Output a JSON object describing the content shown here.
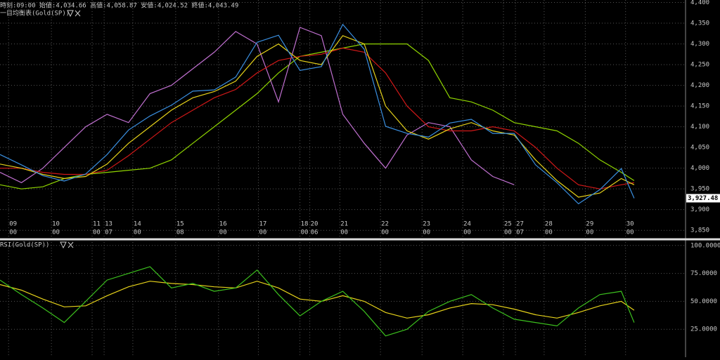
{
  "chart_data": [
    {
      "type": "line",
      "header": "時刻:09:00 始値:4,034.66 高値:4,058.87 安値:4,024.52 終値:4,043.49",
      "title": "一目均衡表(Gold(SP))",
      "x": [
        0,
        5,
        10,
        15,
        20,
        25,
        30,
        35,
        40,
        45,
        50,
        55,
        60,
        65,
        70,
        75,
        80,
        85,
        90,
        95,
        100,
        105,
        110,
        115,
        120,
        125,
        130,
        135,
        140,
        145,
        148
      ],
      "xlim": [
        0,
        160
      ],
      "xticks": [
        {
          "value": 2,
          "label": "09"
        },
        {
          "value": 12,
          "label": "10"
        },
        {
          "value": 21.5,
          "label": "11"
        },
        {
          "value": 24.3,
          "label": "13"
        },
        {
          "value": 31,
          "label": "14"
        },
        {
          "value": 41,
          "label": "15"
        },
        {
          "value": 51,
          "label": "16"
        },
        {
          "value": 60.3,
          "label": "17"
        },
        {
          "value": 70,
          "label": "18"
        },
        {
          "value": 72.3,
          "label": "20"
        },
        {
          "value": 79.3,
          "label": "21"
        },
        {
          "value": 88.8,
          "label": "22"
        },
        {
          "value": 98.5,
          "label": "23"
        },
        {
          "value": 108,
          "label": "24"
        },
        {
          "value": 117.5,
          "label": "25"
        },
        {
          "value": 120.3,
          "label": "27"
        },
        {
          "value": 127,
          "label": "28"
        },
        {
          "value": 136.6,
          "label": "29"
        },
        {
          "value": 146,
          "label": "30"
        }
      ],
      "xtick_sublabels": [
        "00",
        "00",
        "00",
        "07",
        "00",
        "08",
        "00",
        "00",
        "00",
        "06",
        "00",
        "00",
        "00",
        "00",
        "00",
        "07",
        "00",
        "00",
        "00"
      ],
      "ylim": [
        3830,
        4406
      ],
      "yticks": [
        {
          "value": 3850,
          "label": "3,850"
        },
        {
          "value": 3900,
          "label": "3,900"
        },
        {
          "value": 3950,
          "label": "3,950"
        },
        {
          "value": 4000,
          "label": "4,000"
        },
        {
          "value": 4050,
          "label": "4,050"
        },
        {
          "value": 4100,
          "label": "4,100"
        },
        {
          "value": 4150,
          "label": "4,150"
        },
        {
          "value": 4200,
          "label": "4,200"
        },
        {
          "value": 4250,
          "label": "4,250"
        },
        {
          "value": 4300,
          "label": "4,300"
        },
        {
          "value": 4350,
          "label": "4,350"
        },
        {
          "value": 4400,
          "label": "4,400"
        }
      ],
      "grid": true,
      "last_price": {
        "value": 3927.48,
        "label": "3,927.48"
      },
      "series": [
        {
          "color": "#8fd400",
          "values": [
            3960,
            3950,
            3955,
            3975,
            3985,
            3990,
            3995,
            4000,
            4020,
            4060,
            4100,
            4140,
            4180,
            4230,
            4270,
            4280,
            4290,
            4300,
            4300,
            4300,
            4260,
            4170,
            4160,
            4140,
            4110,
            4100,
            4090,
            4060,
            4020,
            3990,
            3970
          ]
        },
        {
          "color": "#c070d0",
          "values": [
            3990,
            3965,
            4000,
            4050,
            4100,
            4130,
            4110,
            4180,
            4200,
            4240,
            4280,
            4330,
            4300,
            4160,
            4340,
            4320,
            4130,
            4060,
            4000,
            4080,
            4110,
            4100,
            4020,
            3980,
            3960,
            null,
            null,
            null,
            null,
            null,
            null
          ]
        },
        {
          "color": "#d01818",
          "values": [
            4000,
            4000,
            3990,
            3985,
            3985,
            3995,
            4030,
            4070,
            4110,
            4140,
            4170,
            4190,
            4230,
            4260,
            4270,
            4275,
            4290,
            4280,
            4230,
            4150,
            4100,
            4090,
            4090,
            4100,
            4090,
            4050,
            4000,
            3960,
            3950,
            3960,
            3965
          ]
        },
        {
          "color": "#e6d21a",
          "values": [
            4010,
            4000,
            3985,
            3975,
            3980,
            4010,
            4060,
            4100,
            4140,
            4170,
            4185,
            4210,
            4270,
            4300,
            4260,
            4250,
            4320,
            4300,
            4150,
            4090,
            4070,
            4095,
            4110,
            4090,
            4080,
            4020,
            3970,
            3930,
            3940,
            3975,
            3960
          ]
        },
        {
          "color": "#3a8fe0",
          "values": [
            4033,
            4008,
            3982,
            3969,
            3986,
            4033,
            4092,
            4126,
            4152,
            4186,
            4189,
            4220,
            4304,
            4321,
            4236,
            4245,
            4347,
            4287,
            4101,
            4084,
            4075,
            4109,
            4118,
            4084,
            4084,
            4008,
            3965,
            3914,
            3948,
            3999,
            3927.48
          ]
        }
      ]
    },
    {
      "type": "line",
      "title": "RSI(Gold(SP))",
      "x": [
        0,
        5,
        10,
        15,
        20,
        25,
        30,
        35,
        40,
        45,
        50,
        55,
        60,
        65,
        70,
        75,
        80,
        85,
        90,
        95,
        100,
        105,
        110,
        115,
        120,
        125,
        130,
        135,
        140,
        145,
        148
      ],
      "xlim": [
        0,
        160
      ],
      "ylim": [
        0,
        103
      ],
      "yticks": [
        {
          "value": 25,
          "label": "25.0000"
        },
        {
          "value": 50,
          "label": "50.0000"
        },
        {
          "value": 75,
          "label": "75.0000"
        },
        {
          "value": 100,
          "label": "100.0000"
        }
      ],
      "grid": true,
      "series": [
        {
          "color": "#e6d21a",
          "values": [
            65,
            60,
            52,
            45,
            46,
            55,
            63,
            68,
            66,
            65,
            63,
            62,
            68,
            62,
            52,
            50,
            55,
            50,
            40,
            35,
            38,
            44,
            48,
            47,
            43,
            38,
            35,
            40,
            46,
            50,
            42
          ]
        },
        {
          "color": "#3cc01e",
          "values": [
            69,
            56,
            44,
            31,
            50,
            69,
            75,
            81,
            62,
            66,
            59,
            62,
            78,
            56,
            37,
            50,
            59,
            41,
            19,
            25,
            41,
            50,
            56,
            44,
            34,
            31,
            28,
            44,
            56,
            59,
            31
          ]
        }
      ]
    }
  ]
}
